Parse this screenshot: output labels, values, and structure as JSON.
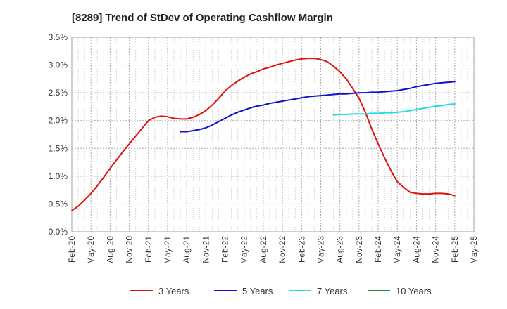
{
  "chart_data": {
    "type": "line",
    "title": "[8289]  Trend of StDev of Operating Cashflow Margin",
    "xlabel": "",
    "ylabel": "",
    "ylim": [
      0,
      0.035
    ],
    "y_ticks": [
      0.0,
      0.005,
      0.01,
      0.015,
      0.02,
      0.025,
      0.03,
      0.035
    ],
    "y_tick_labels": [
      "0.0%",
      "0.5%",
      "1.0%",
      "1.5%",
      "2.0%",
      "2.5%",
      "3.0%",
      "3.5%"
    ],
    "x_tick_labels": [
      "Feb-20",
      "May-20",
      "Aug-20",
      "Nov-20",
      "Feb-21",
      "May-21",
      "Aug-21",
      "Nov-21",
      "Feb-22",
      "May-22",
      "Aug-22",
      "Nov-22",
      "Feb-23",
      "May-23",
      "Aug-23",
      "Nov-23",
      "Feb-24",
      "May-24",
      "Aug-24",
      "Nov-24",
      "Feb-25",
      "May-25"
    ],
    "grid": true,
    "legend_position": "bottom",
    "series": [
      {
        "name": "3 Years",
        "color": "#dd1111",
        "points": [
          [
            "Feb-20",
            0.0038
          ],
          [
            "Mar-20",
            0.0046
          ],
          [
            "Apr-20",
            0.0057
          ],
          [
            "May-20",
            0.0069
          ],
          [
            "Jun-20",
            0.0083
          ],
          [
            "Jul-20",
            0.0098
          ],
          [
            "Aug-20",
            0.0114
          ],
          [
            "Sep-20",
            0.0129
          ],
          [
            "Oct-20",
            0.0144
          ],
          [
            "Nov-20",
            0.0158
          ],
          [
            "Dec-20",
            0.0172
          ],
          [
            "Jan-21",
            0.0186
          ],
          [
            "Feb-21",
            0.02
          ],
          [
            "Mar-21",
            0.0206
          ],
          [
            "Apr-21",
            0.0208
          ],
          [
            "May-21",
            0.0207
          ],
          [
            "Jun-21",
            0.0204
          ],
          [
            "Jul-21",
            0.0203
          ],
          [
            "Aug-21",
            0.0203
          ],
          [
            "Sep-21",
            0.0206
          ],
          [
            "Oct-21",
            0.0211
          ],
          [
            "Nov-21",
            0.0218
          ],
          [
            "Dec-21",
            0.0228
          ],
          [
            "Jan-22",
            0.024
          ],
          [
            "Feb-22",
            0.0253
          ],
          [
            "Mar-22",
            0.0263
          ],
          [
            "Apr-22",
            0.0271
          ],
          [
            "May-22",
            0.0278
          ],
          [
            "Jun-22",
            0.0284
          ],
          [
            "Jul-22",
            0.0288
          ],
          [
            "Aug-22",
            0.0293
          ],
          [
            "Sep-22",
            0.0296
          ],
          [
            "Oct-22",
            0.03
          ],
          [
            "Nov-22",
            0.0303
          ],
          [
            "Dec-22",
            0.0306
          ],
          [
            "Jan-23",
            0.0309
          ],
          [
            "Feb-23",
            0.0311
          ],
          [
            "Mar-23",
            0.0312
          ],
          [
            "Apr-23",
            0.0312
          ],
          [
            "May-23",
            0.031
          ],
          [
            "Jun-23",
            0.0306
          ],
          [
            "Jul-23",
            0.0298
          ],
          [
            "Aug-23",
            0.0288
          ],
          [
            "Sep-23",
            0.0275
          ],
          [
            "Oct-23",
            0.0258
          ],
          [
            "Nov-23",
            0.024
          ],
          [
            "Dec-23",
            0.0215
          ],
          [
            "Jan-24",
            0.0185
          ],
          [
            "Feb-24",
            0.0158
          ],
          [
            "Mar-24",
            0.0133
          ],
          [
            "Apr-24",
            0.011
          ],
          [
            "May-24",
            0.009
          ],
          [
            "Jun-24",
            0.008
          ],
          [
            "Jul-24",
            0.0071
          ],
          [
            "Aug-24",
            0.0069
          ],
          [
            "Sep-24",
            0.0068
          ],
          [
            "Oct-24",
            0.0068
          ],
          [
            "Nov-24",
            0.0069
          ],
          [
            "Dec-24",
            0.0069
          ],
          [
            "Jan-25",
            0.0068
          ],
          [
            "Feb-25",
            0.0065
          ]
        ]
      },
      {
        "name": "5 Years",
        "color": "#1111cc",
        "points": [
          [
            "Jul-21",
            0.018
          ],
          [
            "Aug-21",
            0.018
          ],
          [
            "Sep-21",
            0.0182
          ],
          [
            "Oct-21",
            0.0184
          ],
          [
            "Nov-21",
            0.0187
          ],
          [
            "Dec-21",
            0.0192
          ],
          [
            "Jan-22",
            0.0198
          ],
          [
            "Feb-22",
            0.0204
          ],
          [
            "Mar-22",
            0.021
          ],
          [
            "Apr-22",
            0.0215
          ],
          [
            "May-22",
            0.0219
          ],
          [
            "Jun-22",
            0.0223
          ],
          [
            "Jul-22",
            0.0226
          ],
          [
            "Aug-22",
            0.0228
          ],
          [
            "Sep-22",
            0.0231
          ],
          [
            "Oct-22",
            0.0233
          ],
          [
            "Nov-22",
            0.0235
          ],
          [
            "Dec-22",
            0.0237
          ],
          [
            "Jan-23",
            0.0239
          ],
          [
            "Feb-23",
            0.0241
          ],
          [
            "Mar-23",
            0.0243
          ],
          [
            "Apr-23",
            0.0244
          ],
          [
            "May-23",
            0.0245
          ],
          [
            "Jun-23",
            0.0246
          ],
          [
            "Jul-23",
            0.0247
          ],
          [
            "Aug-23",
            0.0248
          ],
          [
            "Sep-23",
            0.0248
          ],
          [
            "Oct-23",
            0.0249
          ],
          [
            "Nov-23",
            0.025
          ],
          [
            "Dec-23",
            0.025
          ],
          [
            "Jan-24",
            0.0251
          ],
          [
            "Feb-24",
            0.0251
          ],
          [
            "Mar-24",
            0.0252
          ],
          [
            "Apr-24",
            0.0253
          ],
          [
            "May-24",
            0.0254
          ],
          [
            "Jun-24",
            0.0256
          ],
          [
            "Jul-24",
            0.0258
          ],
          [
            "Aug-24",
            0.0261
          ],
          [
            "Sep-24",
            0.0263
          ],
          [
            "Oct-24",
            0.0265
          ],
          [
            "Nov-24",
            0.0267
          ],
          [
            "Dec-24",
            0.0268
          ],
          [
            "Jan-25",
            0.0269
          ],
          [
            "Feb-25",
            0.027
          ]
        ]
      },
      {
        "name": "7 Years",
        "color": "#22dddd",
        "points": [
          [
            "Jul-23",
            0.021
          ],
          [
            "Aug-23",
            0.0211
          ],
          [
            "Sep-23",
            0.0211
          ],
          [
            "Oct-23",
            0.0212
          ],
          [
            "Nov-23",
            0.0212
          ],
          [
            "Dec-23",
            0.0212
          ],
          [
            "Jan-24",
            0.0213
          ],
          [
            "Feb-24",
            0.0213
          ],
          [
            "Mar-24",
            0.0214
          ],
          [
            "Apr-24",
            0.0214
          ],
          [
            "May-24",
            0.0215
          ],
          [
            "Jun-24",
            0.0216
          ],
          [
            "Jul-24",
            0.0218
          ],
          [
            "Aug-24",
            0.022
          ],
          [
            "Sep-24",
            0.0222
          ],
          [
            "Oct-24",
            0.0224
          ],
          [
            "Nov-24",
            0.0226
          ],
          [
            "Dec-24",
            0.0227
          ],
          [
            "Jan-25",
            0.0229
          ],
          [
            "Feb-25",
            0.023
          ]
        ]
      },
      {
        "name": "10 Years",
        "color": "#228822",
        "points": []
      }
    ]
  }
}
